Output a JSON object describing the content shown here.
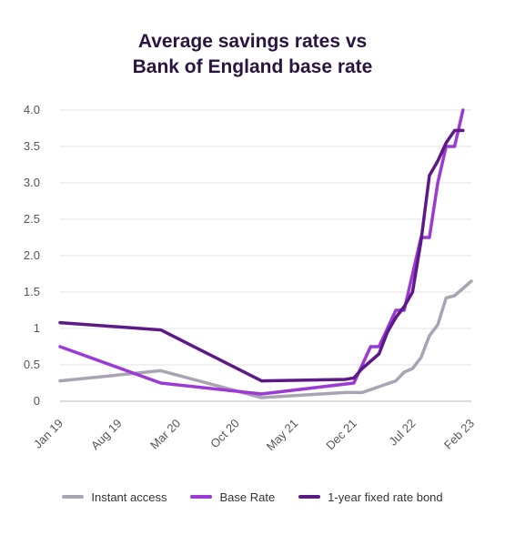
{
  "chart_data": {
    "type": "line",
    "title_lines": [
      "Average savings rates vs",
      "Bank of England base rate"
    ],
    "x_tick_labels": [
      "Jan 19",
      "Aug 19",
      "Mar 20",
      "Oct 20",
      "May 21",
      "Dec 21",
      "Jul 22",
      "Feb 23"
    ],
    "xlim": [
      0,
      49
    ],
    "ylim": [
      0,
      4.0
    ],
    "y_ticks": [
      0,
      0.5,
      1,
      1.5,
      2.0,
      2.5,
      3.0,
      3.5,
      4.0
    ],
    "y_tick_labels": [
      "0",
      "0.5",
      "1",
      "1.5",
      "2.0",
      "2.5",
      "3.0",
      "3.5",
      "4.0"
    ],
    "grid": true,
    "legend_position": "bottom",
    "series": [
      {
        "name": "Instant access",
        "color": "#aaa3b4",
        "points": [
          [
            0,
            0.28
          ],
          [
            12,
            0.42
          ],
          [
            24,
            0.05
          ],
          [
            34,
            0.12
          ],
          [
            36,
            0.12
          ],
          [
            38,
            0.2
          ],
          [
            40,
            0.28
          ],
          [
            41,
            0.4
          ],
          [
            42,
            0.45
          ],
          [
            43,
            0.6
          ],
          [
            44,
            0.9
          ],
          [
            45,
            1.05
          ],
          [
            46,
            1.42
          ],
          [
            47,
            1.45
          ],
          [
            48,
            1.55
          ],
          [
            49,
            1.65
          ]
        ]
      },
      {
        "name": "Base Rate",
        "color": "#9b3ad4",
        "points": [
          [
            0,
            0.75
          ],
          [
            12,
            0.25
          ],
          [
            24,
            0.1
          ],
          [
            35,
            0.25
          ],
          [
            37,
            0.75
          ],
          [
            38,
            0.75
          ],
          [
            40,
            1.25
          ],
          [
            41,
            1.25
          ],
          [
            42,
            1.75
          ],
          [
            43,
            2.25
          ],
          [
            44,
            2.25
          ],
          [
            45,
            3.0
          ],
          [
            46,
            3.5
          ],
          [
            47,
            3.5
          ],
          [
            48,
            4.0
          ]
        ]
      },
      {
        "name": "1-year fixed rate bond",
        "color": "#5b1a86",
        "points": [
          [
            0,
            1.08
          ],
          [
            12,
            0.98
          ],
          [
            24,
            0.28
          ],
          [
            34,
            0.3
          ],
          [
            35,
            0.32
          ],
          [
            36,
            0.45
          ],
          [
            37,
            0.55
          ],
          [
            38,
            0.65
          ],
          [
            39,
            0.95
          ],
          [
            40,
            1.15
          ],
          [
            41,
            1.3
          ],
          [
            42,
            1.5
          ],
          [
            43,
            2.2
          ],
          [
            44,
            3.1
          ],
          [
            45,
            3.3
          ],
          [
            46,
            3.55
          ],
          [
            47,
            3.72
          ],
          [
            48,
            3.72
          ]
        ]
      }
    ]
  }
}
